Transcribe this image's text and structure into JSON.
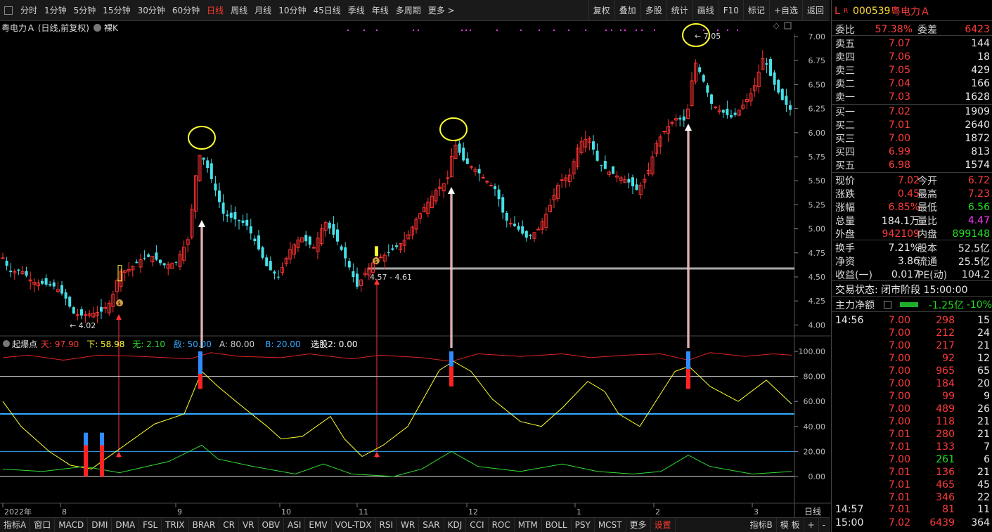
{
  "toolbar": {
    "periods": [
      "分时",
      "1分钟",
      "5分钟",
      "15分钟",
      "30分钟",
      "60分钟",
      "日线",
      "周线",
      "月线",
      "10分钟",
      "45日线",
      "季线",
      "年线",
      "多周期",
      "更多 >"
    ],
    "active_period": "日线",
    "right": [
      "复权",
      "叠加",
      "多股",
      "统计",
      "画线",
      "F10",
      "标记",
      "+自选",
      "返回"
    ]
  },
  "chart_title": {
    "name": "粤电力Ａ (日线,前复权)",
    "mode": "裸K"
  },
  "price_axis": [
    "7.00",
    "6.75",
    "6.50",
    "6.25",
    "6.00",
    "5.75",
    "5.50",
    "5.25",
    "5.00",
    "4.75",
    "4.50",
    "4.25",
    "4.00"
  ],
  "price_labels": {
    "low": "4.02",
    "high": "7.05",
    "range": "4.57 - 4.61"
  },
  "indicator": {
    "name": "起爆点",
    "params": [
      {
        "label": "天: 97.90",
        "color": "#ff3b3b"
      },
      {
        "label": "下: 58.98",
        "color": "#ffff33"
      },
      {
        "label": "无: 2.10",
        "color": "#33dd33"
      },
      {
        "label": "敌: 50.00",
        "color": "#33aaff"
      },
      {
        "label": "A: 80.00",
        "color": "#cccccc"
      },
      {
        "label": "B: 20.00",
        "color": "#33aaff"
      },
      {
        "label": "选股2: 0.00",
        "color": "#ffffff"
      }
    ],
    "axis": [
      "100.00",
      "80.00",
      "60.00",
      "40.00",
      "20.00",
      "0.00"
    ]
  },
  "time_axis": {
    "labels": [
      "2022年",
      "8",
      "9",
      "10",
      "11",
      "12",
      "1",
      "2",
      "3"
    ],
    "period": "日线"
  },
  "bottom_tabs": [
    "指标A",
    "窗口",
    "MACD",
    "DMI",
    "DMA",
    "FSL",
    "TRIX",
    "BRAR",
    "CR",
    "VR",
    "OBV",
    "ASI",
    "EMV",
    "VOL-TDX",
    "RSI",
    "WR",
    "SAR",
    "KDJ",
    "CCI",
    "ROC",
    "MTM",
    "BOLL",
    "PSY",
    "MCST",
    "更多",
    "设置"
  ],
  "bottom_right": [
    "指标B",
    "模 板",
    "+",
    "-"
  ],
  "quote": {
    "code": "000539",
    "name": "粤电力Ａ",
    "weibi": {
      "label": "委比",
      "value": "57.38%"
    },
    "weicha": {
      "label": "委差",
      "value": "6423"
    },
    "asks": [
      {
        "label": "卖五",
        "price": "7.07",
        "vol": "144"
      },
      {
        "label": "卖四",
        "price": "7.06",
        "vol": "18"
      },
      {
        "label": "卖三",
        "price": "7.05",
        "vol": "429"
      },
      {
        "label": "卖二",
        "price": "7.04",
        "vol": "166"
      },
      {
        "label": "卖一",
        "price": "7.03",
        "vol": "1628"
      }
    ],
    "bids": [
      {
        "label": "买一",
        "price": "7.02",
        "vol": "1909"
      },
      {
        "label": "买二",
        "price": "7.01",
        "vol": "2640"
      },
      {
        "label": "买三",
        "price": "7.00",
        "vol": "1872"
      },
      {
        "label": "买四",
        "price": "6.99",
        "vol": "813"
      },
      {
        "label": "买五",
        "price": "6.98",
        "vol": "1574"
      }
    ],
    "stats": [
      {
        "l1": "现价",
        "v1": "7.02",
        "c1": "red",
        "l2": "今开",
        "v2": "6.72",
        "c2": "red"
      },
      {
        "l1": "涨跌",
        "v1": "0.45",
        "c1": "red",
        "l2": "最高",
        "v2": "7.23",
        "c2": "red"
      },
      {
        "l1": "涨幅",
        "v1": "6.85%",
        "c1": "red",
        "l2": "最低",
        "v2": "6.56",
        "c2": "green"
      },
      {
        "l1": "总量",
        "v1": "184.1万",
        "c1": "white",
        "l2": "量比",
        "v2": "4.47",
        "c2": "magenta"
      },
      {
        "l1": "外盘",
        "v1": "942109",
        "c1": "red",
        "l2": "内盘",
        "v2": "899148",
        "c2": "green"
      }
    ],
    "stats2": [
      {
        "l1": "换手",
        "v1": "7.21%",
        "l2": "股本",
        "v2": "52.5亿"
      },
      {
        "l1": "净资",
        "v1": "3.86",
        "l2": "流通",
        "v2": "25.5亿"
      },
      {
        "l1": "收益(一)",
        "v1": "0.017",
        "l2": "PE(动)",
        "v2": "104.2"
      }
    ],
    "trade_status": "交易状态: 闭市阶段 15:00:00",
    "main_flow": {
      "label": "主力净额",
      "value": "-1.25亿",
      "pct": "-10%"
    },
    "ticks": [
      {
        "t": "14:56",
        "p": "7.00",
        "v": "298",
        "c": "red",
        "n": "15"
      },
      {
        "t": "",
        "p": "7.00",
        "v": "212",
        "c": "red",
        "n": "24"
      },
      {
        "t": "",
        "p": "7.00",
        "v": "217",
        "c": "red",
        "n": "21"
      },
      {
        "t": "",
        "p": "7.00",
        "v": "92",
        "c": "red",
        "n": "12"
      },
      {
        "t": "",
        "p": "7.00",
        "v": "965",
        "c": "red",
        "n": "65"
      },
      {
        "t": "",
        "p": "7.00",
        "v": "184",
        "c": "red",
        "n": "20"
      },
      {
        "t": "",
        "p": "7.00",
        "v": "99",
        "c": "red",
        "n": "9"
      },
      {
        "t": "",
        "p": "7.00",
        "v": "489",
        "c": "red",
        "n": "26"
      },
      {
        "t": "",
        "p": "7.00",
        "v": "118",
        "c": "red",
        "n": "21"
      },
      {
        "t": "",
        "p": "7.01",
        "v": "280",
        "c": "red",
        "n": "21"
      },
      {
        "t": "",
        "p": "7.01",
        "v": "133",
        "c": "red",
        "n": "7"
      },
      {
        "t": "",
        "p": "7.00",
        "v": "261",
        "c": "green",
        "n": "6"
      },
      {
        "t": "",
        "p": "7.01",
        "v": "136",
        "c": "red",
        "n": "21"
      },
      {
        "t": "",
        "p": "7.01",
        "v": "465",
        "c": "red",
        "n": "45"
      },
      {
        "t": "",
        "p": "7.01",
        "v": "346",
        "c": "red",
        "n": "22"
      },
      {
        "t": "14:57",
        "p": "7.01",
        "v": "81",
        "c": "red",
        "n": "11"
      },
      {
        "t": "15:00",
        "p": "7.02",
        "v": "6439",
        "c": "red",
        "n": "364"
      }
    ]
  }
}
